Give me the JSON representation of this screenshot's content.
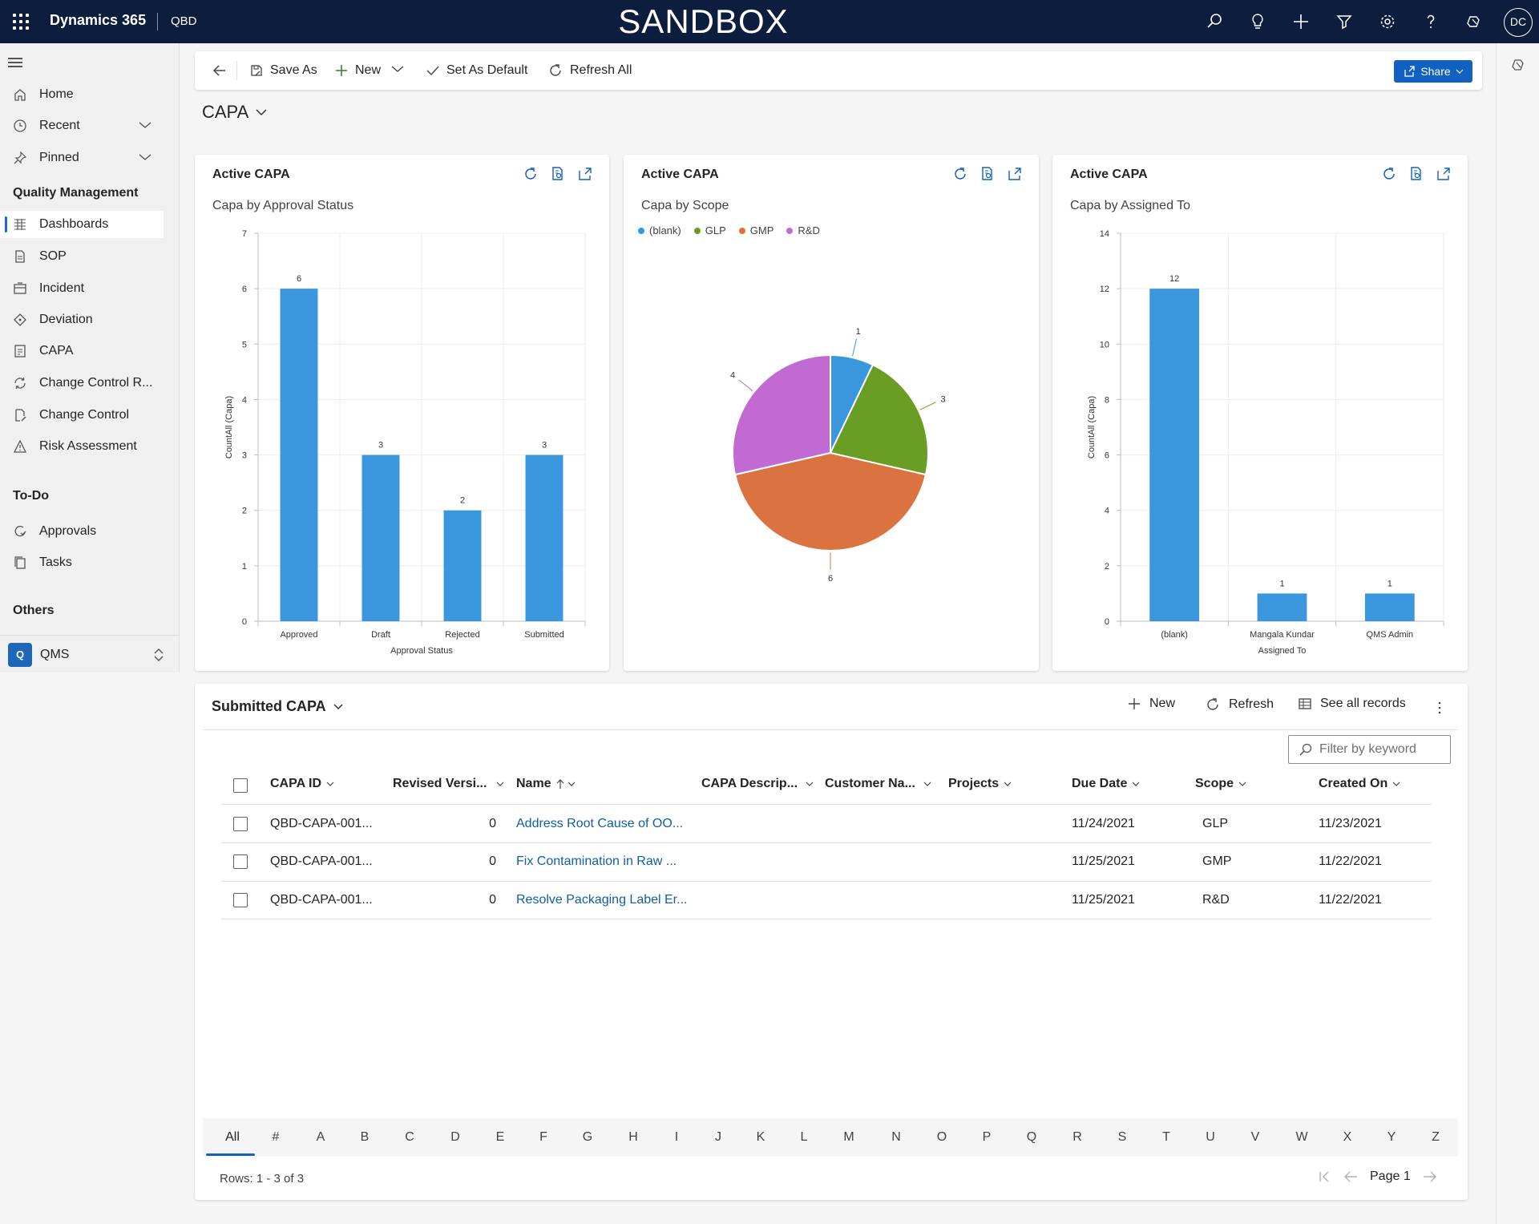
{
  "topbar": {
    "app_name": "Dynamics 365",
    "environment": "QBD",
    "banner": "SANDBOX",
    "avatar_initials": "DC",
    "bg_color": "#0c1d3d"
  },
  "sidebar": {
    "top_items": [
      {
        "label": "Home",
        "icon": "home-icon"
      },
      {
        "label": "Recent",
        "icon": "clock-icon"
      },
      {
        "label": "Pinned",
        "icon": "pin-icon"
      }
    ],
    "section_quality": "Quality Management",
    "quality_items": [
      {
        "label": "Dashboards",
        "icon": "dashboard-icon",
        "active": true
      },
      {
        "label": "SOP",
        "icon": "document-icon"
      },
      {
        "label": "Incident",
        "icon": "incident-icon"
      },
      {
        "label": "Deviation",
        "icon": "diamond-icon"
      },
      {
        "label": "CAPA",
        "icon": "capa-icon"
      },
      {
        "label": "Change Control R...",
        "icon": "sync-icon"
      },
      {
        "label": "Change Control",
        "icon": "edit-doc-icon"
      },
      {
        "label": "Risk Assessment",
        "icon": "warning-icon"
      }
    ],
    "section_todo": "To-Do",
    "todo_items": [
      {
        "label": "Approvals",
        "icon": "approval-icon"
      },
      {
        "label": "Tasks",
        "icon": "tasks-icon"
      }
    ],
    "section_others": "Others",
    "area_badge": "Q",
    "area_label": "QMS"
  },
  "commandbar": {
    "save_as": "Save As",
    "new": "New",
    "set_default": "Set As Default",
    "refresh_all": "Refresh All",
    "share": "Share"
  },
  "page_title": "CAPA",
  "charts": [
    {
      "title": "Active CAPA",
      "subtitle": "Capa by Approval Status"
    },
    {
      "title": "Active CAPA",
      "subtitle": "Capa by Scope"
    },
    {
      "title": "Active CAPA",
      "subtitle": "Capa by Assigned To"
    }
  ],
  "chart_data": [
    {
      "type": "bar",
      "title": "Capa by Approval Status",
      "categories": [
        "Approved",
        "Draft",
        "Rejected",
        "Submitted"
      ],
      "values": [
        6,
        3,
        2,
        3
      ],
      "xlabel": "Approval Status",
      "ylabel": "CountAll (Capa)",
      "ylim": [
        0,
        7
      ],
      "yticks": [
        0,
        1,
        2,
        3,
        4,
        5,
        6,
        7
      ],
      "color": "#3a96dd",
      "grid": true
    },
    {
      "type": "pie",
      "title": "Capa by Scope",
      "categories": [
        "(blank)",
        "GLP",
        "GMP",
        "R&D"
      ],
      "values": [
        1,
        3,
        6,
        4
      ],
      "colors": [
        "#3a96dd",
        "#6a9d23",
        "#da7340",
        "#c06ad2"
      ],
      "legend": "top-left"
    },
    {
      "type": "bar",
      "title": "Capa by Assigned To",
      "categories": [
        "(blank)",
        "Mangala Kundar",
        "QMS Admin"
      ],
      "values": [
        12,
        1,
        1
      ],
      "xlabel": "Assigned To",
      "ylabel": "CountAll (Capa)",
      "ylim": [
        0,
        14
      ],
      "yticks": [
        0,
        2,
        4,
        6,
        8,
        10,
        12,
        14
      ],
      "color": "#3a96dd",
      "grid": true
    }
  ],
  "grid": {
    "title": "Submitted CAPA",
    "cmd_new": "New",
    "cmd_refresh": "Refresh",
    "cmd_see_all": "See all records",
    "filter_placeholder": "Filter by keyword",
    "columns": [
      "CAPA ID",
      "Revised Versi...",
      "Name",
      "CAPA Descrip...",
      "Customer Na...",
      "Projects",
      "Due Date",
      "Scope",
      "Created On"
    ],
    "rows": [
      {
        "capa_id": "QBD-CAPA-001...",
        "revised": "0",
        "name": "Address Root Cause of OO...",
        "due": "11/24/2021",
        "scope": "GLP",
        "created": "11/23/2021"
      },
      {
        "capa_id": "QBD-CAPA-001...",
        "revised": "0",
        "name": "Fix Contamination in Raw ...",
        "due": "11/25/2021",
        "scope": "GMP",
        "created": "11/22/2021"
      },
      {
        "capa_id": "QBD-CAPA-001...",
        "revised": "0",
        "name": "Resolve Packaging Label Er...",
        "due": "11/25/2021",
        "scope": "R&D",
        "created": "11/22/2021"
      }
    ],
    "alphabet": [
      "All",
      "#",
      "A",
      "B",
      "C",
      "D",
      "E",
      "F",
      "G",
      "H",
      "I",
      "J",
      "K",
      "L",
      "M",
      "N",
      "O",
      "P",
      "Q",
      "R",
      "S",
      "T",
      "U",
      "V",
      "W",
      "X",
      "Y",
      "Z"
    ],
    "rows_info": "Rows: 1 - 3 of 3",
    "page_label": "Page 1"
  }
}
